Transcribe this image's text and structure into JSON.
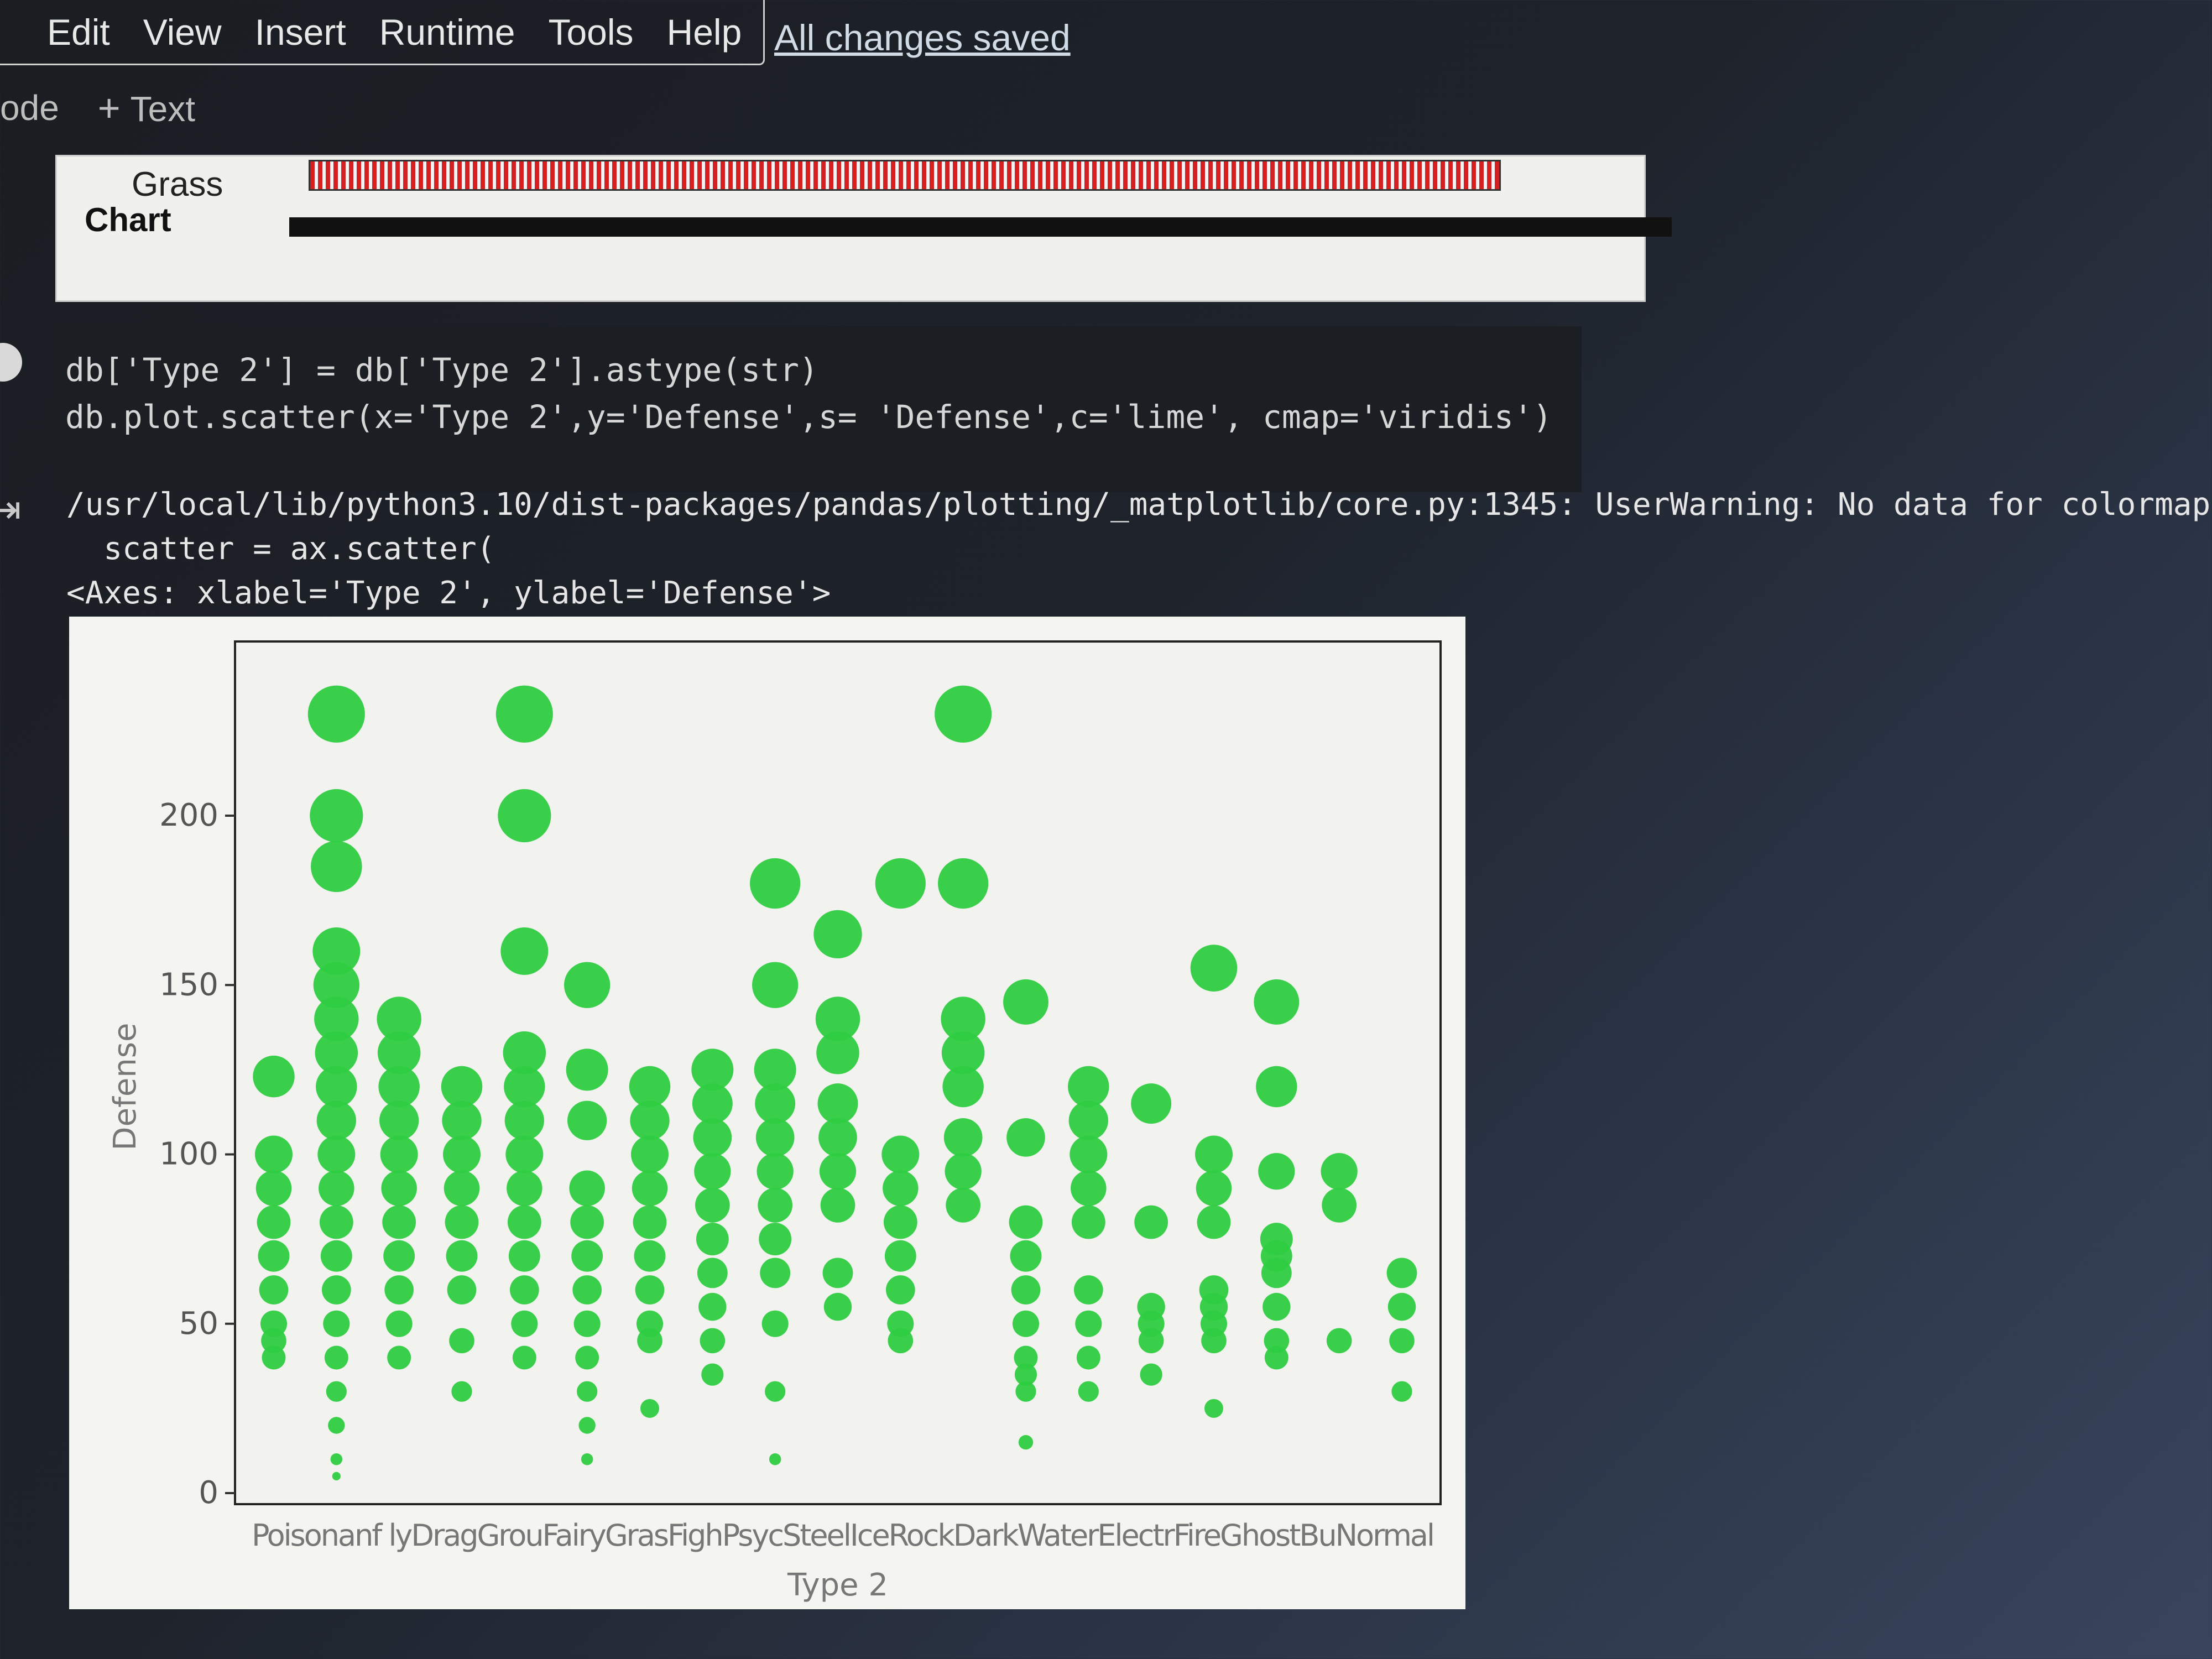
{
  "menu": {
    "items": [
      "Edit",
      "View",
      "Insert",
      "Runtime",
      "Tools",
      "Help"
    ],
    "status_link": "All changes saved"
  },
  "toolbar": {
    "code_label": "ode",
    "text_label": "Text"
  },
  "previous_output": {
    "label": "Grass",
    "cut_text": "Chart"
  },
  "code": {
    "line1": "db['Type 2'] = db['Type 2'].astype(str)",
    "line2": "db.plot.scatter(x='Type 2',y='Defense',s= 'Defense',c='lime', cmap='viridis')"
  },
  "output": {
    "warning": "/usr/local/lib/python3.10/dist-packages/pandas/plotting/_matplotlib/core.py:1345: UserWarning: No data for colormapp",
    "warning_line2": "  scatter = ax.scatter(",
    "axes_repr": "<Axes: xlabel='Type 2', ylabel='Defense'>"
  },
  "chart_data": {
    "type": "scatter",
    "xlabel": "Type 2",
    "ylabel": "Defense",
    "ylim": [
      0,
      240
    ],
    "yticks": [
      0,
      50,
      100,
      150,
      200
    ],
    "color": "#2ecc40",
    "categories": [
      "Poison",
      "nan",
      "Flying",
      "Dragon",
      "Ground",
      "Fairy",
      "Grass",
      "Fighting",
      "Psychic",
      "Steel",
      "Ice",
      "Rock",
      "Dark",
      "Water",
      "Electric",
      "Fire",
      "Ghost",
      "Bug",
      "Normal"
    ],
    "x_tick_labels": "Poisonanf lyDragGrouFairyGrasFighPsycSteelIceRockDarkWaterElectrFireGhostBuNormal",
    "points": [
      {
        "category": "Poison",
        "defense": [
          123,
          100,
          90,
          80,
          70,
          60,
          50,
          45,
          40
        ]
      },
      {
        "category": "nan",
        "defense": [
          230,
          200,
          185,
          160,
          150,
          140,
          130,
          120,
          110,
          100,
          90,
          80,
          70,
          60,
          50,
          40,
          30,
          20,
          10,
          5
        ]
      },
      {
        "category": "Flying",
        "defense": [
          140,
          130,
          120,
          110,
          100,
          90,
          80,
          70,
          60,
          50,
          40
        ]
      },
      {
        "category": "Dragon",
        "defense": [
          120,
          110,
          100,
          90,
          80,
          70,
          60,
          45,
          30
        ]
      },
      {
        "category": "Ground",
        "defense": [
          230,
          200,
          160,
          130,
          120,
          110,
          100,
          90,
          80,
          70,
          60,
          50,
          40
        ]
      },
      {
        "category": "Fairy",
        "defense": [
          150,
          125,
          110,
          90,
          80,
          70,
          60,
          50,
          40,
          30,
          20,
          10
        ]
      },
      {
        "category": "Grass",
        "defense": [
          120,
          110,
          100,
          90,
          80,
          70,
          60,
          50,
          45,
          25
        ]
      },
      {
        "category": "Fighting",
        "defense": [
          125,
          115,
          105,
          95,
          85,
          75,
          65,
          55,
          45,
          35
        ]
      },
      {
        "category": "Psychic",
        "defense": [
          180,
          150,
          125,
          115,
          105,
          95,
          85,
          75,
          65,
          50,
          30,
          10
        ]
      },
      {
        "category": "Steel",
        "defense": [
          165,
          140,
          130,
          115,
          105,
          95,
          85,
          65,
          55
        ]
      },
      {
        "category": "Ice",
        "defense": [
          180,
          100,
          90,
          80,
          70,
          60,
          50,
          45
        ]
      },
      {
        "category": "Rock",
        "defense": [
          230,
          180,
          140,
          130,
          120,
          105,
          95,
          85
        ]
      },
      {
        "category": "Dark",
        "defense": [
          145,
          105,
          80,
          70,
          60,
          50,
          40,
          35,
          30,
          15
        ]
      },
      {
        "category": "Water",
        "defense": [
          120,
          110,
          100,
          90,
          80,
          60,
          50,
          40,
          30
        ]
      },
      {
        "category": "Electric",
        "defense": [
          115,
          80,
          55,
          50,
          45,
          35
        ]
      },
      {
        "category": "Fire",
        "defense": [
          155,
          100,
          90,
          80,
          60,
          55,
          50,
          45,
          25
        ]
      },
      {
        "category": "Ghost",
        "defense": [
          145,
          120,
          95,
          75,
          70,
          65,
          55,
          45,
          40
        ]
      },
      {
        "category": "Bug",
        "defense": [
          95,
          85,
          45
        ]
      },
      {
        "category": "Normal",
        "defense": [
          65,
          55,
          45,
          30
        ]
      }
    ]
  }
}
